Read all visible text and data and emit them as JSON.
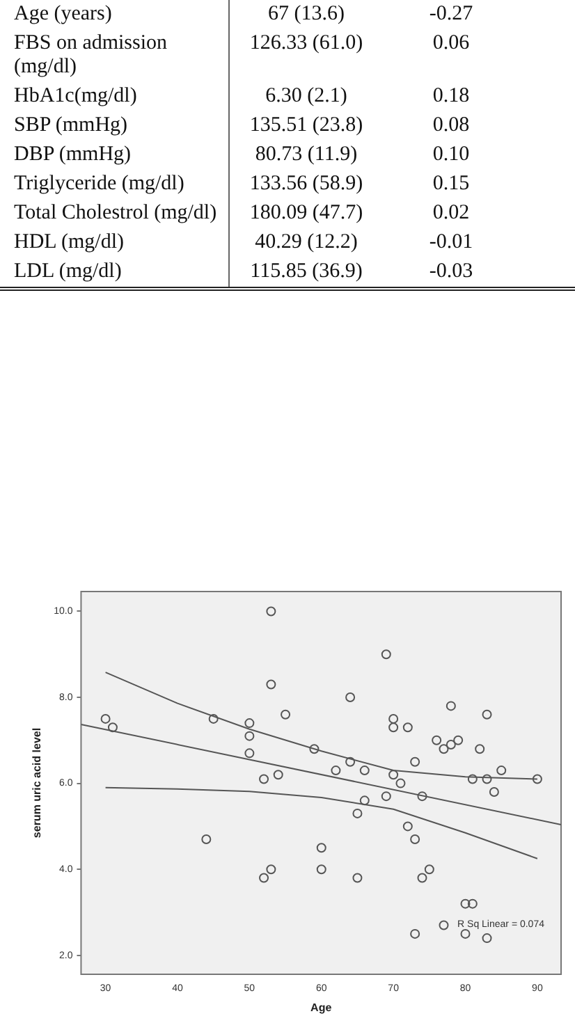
{
  "chart_data": [
    {
      "type": "other",
      "annotations": [
        "Age (years)",
        "67 (13.6)",
        "-0.27",
        "FBS on admission (mg/dl)",
        "126.33 (61.0)",
        "0.06",
        "HbA1c(mg/dl)",
        "6.30 (2.1)",
        "0.18",
        "SBP (mmHg)",
        "135.51 (23.8)",
        "0.08",
        "DBP (mmHg)",
        "80.73 (11.9)",
        "0.10",
        "Triglyceride (mg/dl)",
        "133.56 (58.9)",
        "0.15",
        "Total Cholestrol (mg/dl)",
        "180.09 (47.7)",
        "0.02",
        "HDL (mg/dl)",
        "40.29 (12.2)",
        "-0.01",
        "LDL (mg/dl)",
        "115.85 (36.9)",
        "-0.03"
      ]
    },
    {
      "type": "scatter",
      "xlabel": "Age",
      "ylabel": "serum uric acid level",
      "xlim": [
        26.6,
        93.3
      ],
      "ylim": [
        1.56,
        10.46
      ],
      "xticks": [
        30,
        40,
        50,
        60,
        70,
        80,
        90
      ],
      "yticks": [
        {
          "value": 2,
          "label": "2.0"
        },
        {
          "value": 4,
          "label": "4.0"
        },
        {
          "value": 6,
          "label": "6.0"
        },
        {
          "value": 8,
          "label": "8.0"
        },
        {
          "value": 10,
          "label": "10.0"
        }
      ],
      "grid": false,
      "legend": false,
      "annotations": [
        "R Sq Linear = 0.074"
      ],
      "series": [
        {
          "type": "scatter",
          "color": "#555555",
          "marker": "circle",
          "x": [
            30,
            31,
            45,
            50,
            50,
            50,
            52,
            54,
            53,
            53,
            55,
            44,
            53,
            52,
            69,
            64,
            78,
            83,
            70,
            70,
            72,
            76,
            77,
            78,
            79,
            82,
            59,
            64,
            73,
            62,
            66,
            85,
            70,
            81,
            83,
            90,
            71,
            84,
            69,
            74,
            66,
            65,
            72,
            73,
            60,
            60,
            75,
            65,
            74,
            80,
            81,
            77,
            73,
            80,
            83
          ],
          "values": [
            7.5,
            7.3,
            7.5,
            7.4,
            7.1,
            6.7,
            6.1,
            6.2,
            10.0,
            8.3,
            7.6,
            4.7,
            4.0,
            3.8,
            9.0,
            8.0,
            7.8,
            7.6,
            7.5,
            7.3,
            7.3,
            7.0,
            6.8,
            6.9,
            7.0,
            6.8,
            6.8,
            6.5,
            6.5,
            6.3,
            6.3,
            6.3,
            6.2,
            6.1,
            6.1,
            6.1,
            6.0,
            5.8,
            5.7,
            5.7,
            5.6,
            5.3,
            5.0,
            4.7,
            4.5,
            4.0,
            4.0,
            3.8,
            3.8,
            3.2,
            3.2,
            2.7,
            2.5,
            2.5,
            2.4
          ]
        },
        {
          "type": "line",
          "color": "#555555",
          "marker": "none",
          "x": [
            26.6,
            93.3
          ],
          "values": [
            7.37,
            5.04
          ]
        },
        {
          "type": "line",
          "color": "#555555",
          "marker": "none",
          "x": [
            30,
            40,
            50,
            60,
            70,
            80,
            90
          ],
          "values": [
            8.58,
            7.86,
            7.26,
            6.75,
            6.3,
            6.15,
            6.1
          ]
        },
        {
          "type": "line",
          "color": "#555555",
          "marker": "none",
          "x": [
            30,
            40,
            50,
            60,
            70,
            80,
            90
          ],
          "values": [
            5.9,
            5.87,
            5.81,
            5.67,
            5.4,
            4.85,
            4.25
          ]
        }
      ]
    }
  ]
}
